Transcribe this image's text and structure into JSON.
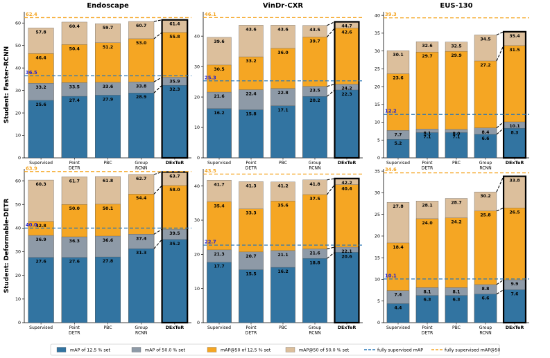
{
  "colors": {
    "map125": "#3274a1",
    "map50": "#8e9aa7",
    "ap50_125": "#f5a623",
    "ap50_50": "#dcbf9c",
    "ref_map": "#2a78b8",
    "ref_map50": "#f5a623",
    "ref_map_text": "#1f1fd6",
    "ref_map50_text": "#f5a623"
  },
  "row_labels": [
    "Student: Faster-RCNN",
    "Student: Deformable-DETR"
  ],
  "legend": [
    {
      "label": "mAP of 12.5 % set",
      "type": "patch",
      "color_key": "map125"
    },
    {
      "label": "mAP of 50.0 % set",
      "type": "patch",
      "color_key": "map50"
    },
    {
      "label": "mAP@50 of 12.5 % set",
      "type": "patch",
      "color_key": "ap50_125"
    },
    {
      "label": "mAP@50 of 50.0 % set",
      "type": "patch",
      "color_key": "ap50_50"
    },
    {
      "label": "fully supervised mAP",
      "type": "line",
      "color_key": "ref_map"
    },
    {
      "label": "fully supervised mAP@50",
      "type": "line",
      "color_key": "ref_map50"
    }
  ],
  "chart_data": [
    {
      "type": "bar",
      "title": "Endoscape",
      "student": "Faster-RCNN",
      "categories": [
        "Supervised",
        "Point\nDETR",
        "PBC",
        "Group\nRCNN",
        "DExTeR"
      ],
      "ylim": [
        0,
        65
      ],
      "yticks": [
        0,
        10,
        20,
        30,
        40,
        50,
        60
      ],
      "series": [
        {
          "name": "mAP of 12.5 % set",
          "values": [
            25.6,
            27.4,
            27.9,
            28.9,
            32.3
          ]
        },
        {
          "name": "mAP of 50.0 % set",
          "values": [
            33.2,
            33.5,
            33.6,
            33.8,
            35.9
          ]
        },
        {
          "name": "mAP@50 of 12.5 % set",
          "values": [
            46.4,
            50.4,
            51.2,
            53.0,
            55.8
          ]
        },
        {
          "name": "mAP@50 of 50.0 % set",
          "values": [
            57.8,
            60.4,
            59.7,
            60.7,
            61.4
          ]
        }
      ],
      "fully_supervised_map": 36.5,
      "fully_supervised_map50": 62.4
    },
    {
      "type": "bar",
      "title": "VinDr-CXR",
      "student": "Faster-RCNN",
      "categories": [
        "Supervised",
        "Point\nDETR",
        "PBC",
        "Group\nRCNN",
        "DExTeR"
      ],
      "ylim": [
        0,
        48
      ],
      "yticks": [
        0,
        10,
        20,
        30,
        40
      ],
      "series": [
        {
          "name": "mAP of 12.5 % set",
          "values": [
            16.2,
            15.8,
            17.1,
            20.2,
            22.3
          ]
        },
        {
          "name": "mAP of 50.0 % set",
          "values": [
            21.6,
            22.4,
            22.8,
            23.5,
            24.2
          ]
        },
        {
          "name": "mAP@50 of 12.5 % set",
          "values": [
            30.5,
            33.2,
            36.0,
            39.7,
            42.6
          ]
        },
        {
          "name": "mAP@50 of 50.0 % set",
          "values": [
            39.6,
            43.6,
            43.6,
            43.5,
            44.7
          ]
        }
      ],
      "fully_supervised_map": 25.3,
      "fully_supervised_map50": 46.1
    },
    {
      "type": "bar",
      "title": "EUS-130",
      "student": "Faster-RCNN",
      "categories": [
        "Supervised",
        "Point\nDETR",
        "PBC",
        "Group\nRCNN",
        "DExTeR"
      ],
      "ylim": [
        0,
        41
      ],
      "yticks": [
        0,
        5,
        10,
        15,
        20,
        25,
        30,
        35,
        40
      ],
      "series": [
        {
          "name": "mAP of 12.5 % set",
          "values": [
            5.2,
            7.1,
            7.1,
            6.6,
            8.3
          ]
        },
        {
          "name": "mAP of 50.0 % set",
          "values": [
            7.7,
            8.1,
            8.0,
            8.4,
            10.1
          ]
        },
        {
          "name": "mAP@50 of 12.5 % set",
          "values": [
            23.6,
            29.7,
            29.9,
            27.2,
            31.5
          ]
        },
        {
          "name": "mAP@50 of 50.0 % set",
          "values": [
            30.1,
            32.6,
            32.5,
            34.5,
            35.4
          ]
        }
      ],
      "fully_supervised_map": 12.2,
      "fully_supervised_map50": 39.3
    },
    {
      "type": "bar",
      "title": "Endoscape",
      "student": "Deformable-DETR",
      "categories": [
        "Supervised",
        "Point\nDETR",
        "PBC",
        "Group\nRCNN",
        "DExTeR"
      ],
      "ylim": [
        0,
        65
      ],
      "yticks": [
        0,
        10,
        20,
        30,
        40,
        50,
        60
      ],
      "series": [
        {
          "name": "mAP of 12.5 % set",
          "values": [
            27.6,
            27.6,
            27.8,
            31.3,
            35.2
          ]
        },
        {
          "name": "mAP of 50.0 % set",
          "values": [
            36.9,
            36.3,
            36.6,
            37.4,
            39.5
          ]
        },
        {
          "name": "mAP@50 of 12.5 % set",
          "values": [
            42.8,
            50.0,
            50.1,
            54.4,
            58.0
          ]
        },
        {
          "name": "mAP@50 of 50.0 % set",
          "values": [
            60.3,
            61.7,
            61.8,
            62.7,
            63.7
          ]
        }
      ],
      "fully_supervised_map": 40.0,
      "fully_supervised_map50": 63.9
    },
    {
      "type": "bar",
      "title": "VinDr-CXR",
      "student": "Deformable-DETR",
      "categories": [
        "Supervised",
        "Point\nDETR",
        "PBC",
        "Group\nRCNN",
        "DExTeR"
      ],
      "ylim": [
        0,
        45
      ],
      "yticks": [
        0,
        10,
        20,
        30,
        40
      ],
      "series": [
        {
          "name": "mAP of 12.5 % set",
          "values": [
            17.7,
            15.5,
            16.2,
            18.8,
            20.6
          ]
        },
        {
          "name": "mAP of 50.0 % set",
          "values": [
            21.3,
            20.7,
            21.1,
            21.6,
            22.1
          ]
        },
        {
          "name": "mAP@50 of 12.5 % set",
          "values": [
            35.4,
            33.3,
            35.6,
            37.5,
            40.4
          ]
        },
        {
          "name": "mAP@50 of 50.0 % set",
          "values": [
            41.7,
            41.3,
            41.2,
            41.8,
            42.2
          ]
        }
      ],
      "fully_supervised_map": 22.7,
      "fully_supervised_map50": 43.5
    },
    {
      "type": "bar",
      "title": "EUS-130",
      "student": "Deformable-DETR",
      "categories": [
        "Supervised",
        "Point\nDETR",
        "PBC",
        "Group\nRCNN",
        "DExTeR"
      ],
      "ylim": [
        0,
        35.5
      ],
      "yticks": [
        0,
        5,
        10,
        15,
        20,
        25,
        30,
        35
      ],
      "series": [
        {
          "name": "mAP of 12.5 % set",
          "values": [
            4.4,
            6.3,
            6.3,
            6.6,
            7.6
          ]
        },
        {
          "name": "mAP of 50.0 % set",
          "values": [
            7.4,
            8.1,
            8.1,
            8.8,
            9.9
          ]
        },
        {
          "name": "mAP@50 of 12.5 % set",
          "values": [
            18.4,
            24.0,
            24.2,
            25.8,
            26.5
          ]
        },
        {
          "name": "mAP@50 of 50.0 % set",
          "values": [
            27.8,
            28.1,
            28.7,
            30.2,
            33.8
          ]
        }
      ],
      "fully_supervised_map": 10.1,
      "fully_supervised_map50": 34.6
    }
  ]
}
